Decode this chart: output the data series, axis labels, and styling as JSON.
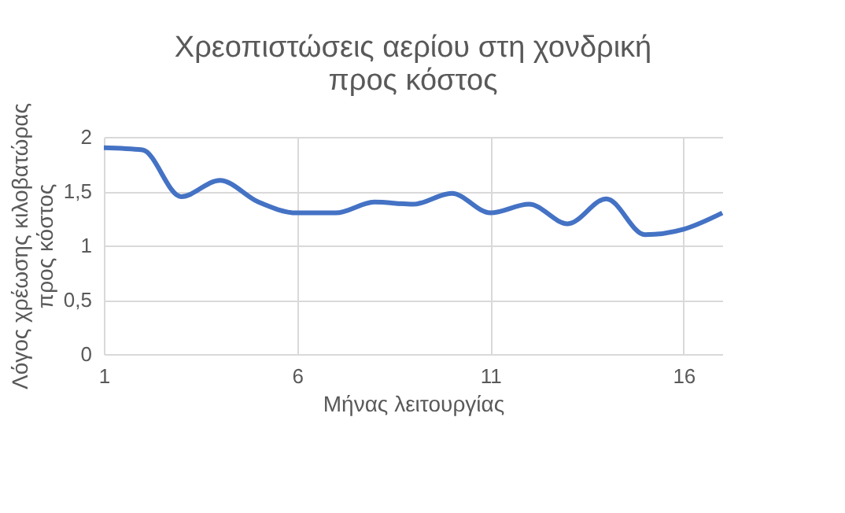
{
  "chart_data": {
    "type": "line",
    "title": "Χρεοπιστώσεις αερίου στη χονδρική\nπρος κόστος",
    "xlabel": "Μήνας λειτουργίας",
    "ylabel": "Λόγος χρέωσης κιλοβατώρας\nπρος κόστος",
    "x": [
      1,
      2,
      3,
      4,
      5,
      6,
      7,
      8,
      9,
      10,
      11,
      12,
      13,
      14,
      15,
      16,
      17
    ],
    "series": [
      {
        "color": "#4472c4",
        "values": [
          1.9,
          1.88,
          1.45,
          1.6,
          1.4,
          1.3,
          1.3,
          1.4,
          1.38,
          1.48,
          1.3,
          1.38,
          1.2,
          1.43,
          1.1,
          1.15,
          1.3
        ]
      }
    ],
    "xlim": [
      1,
      17
    ],
    "xticks": [
      1,
      6,
      11,
      16
    ],
    "ylim": [
      0,
      2
    ],
    "yticks": [
      0,
      {
        "value": 0.5,
        "label": "0,5"
      },
      1,
      {
        "value": 1.5,
        "label": "1,5"
      },
      2
    ],
    "grid": true,
    "marker": "none",
    "line_style": "solid"
  }
}
